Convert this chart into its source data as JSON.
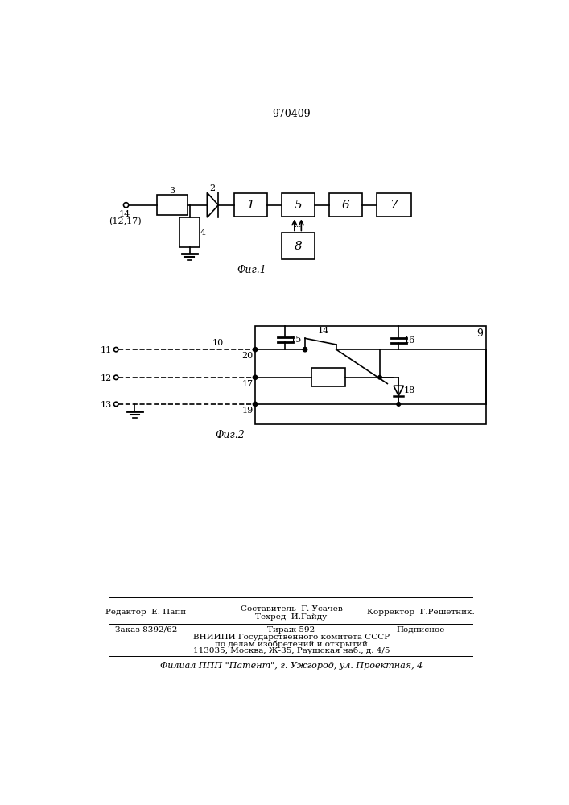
{
  "title": "970409",
  "fig1_label": "Фиг.1",
  "fig2_label": "Фиг.2",
  "bg_color": "#ffffff",
  "line_color": "#000000",
  "footer_last": "Филиал ППП \"Патент\", г. Ужгород, ул. Проектная, 4"
}
